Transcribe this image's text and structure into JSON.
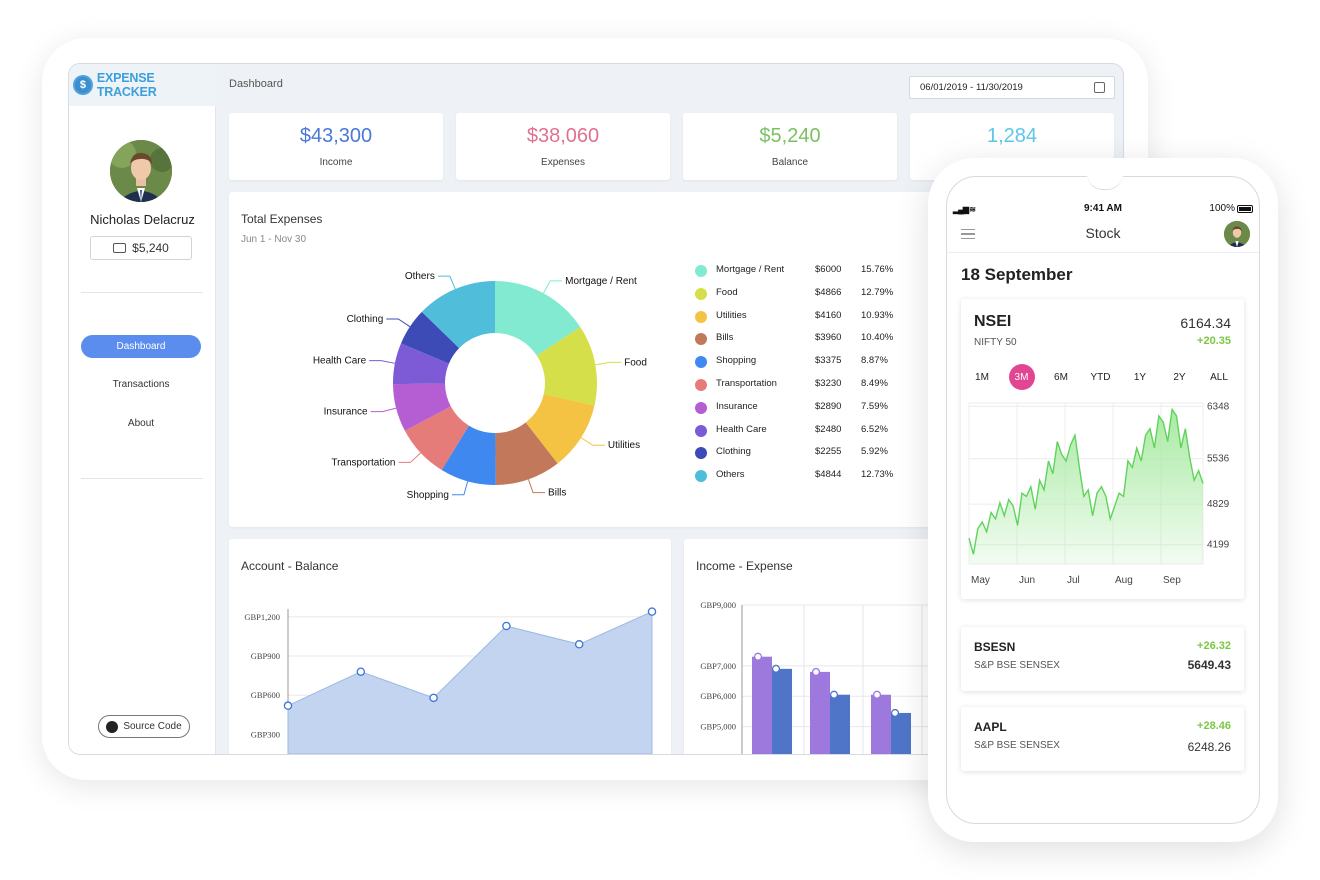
{
  "app": {
    "brand": "EXPENSE TRACKER",
    "brand_logo_glyph": "$"
  },
  "sidebar": {
    "user_name": "Nicholas Delacruz",
    "wallet_balance": "$5,240",
    "nav": [
      {
        "label": "Dashboard",
        "active": true
      },
      {
        "label": "Transactions",
        "active": false
      },
      {
        "label": "About",
        "active": false
      }
    ],
    "source_code_label": "Source Code"
  },
  "header": {
    "breadcrumb": "Dashboard",
    "date_range": "06/01/2019 - 11/30/2019"
  },
  "stats": [
    {
      "value": "$43,300",
      "label": "Income",
      "color": "#4a78d6"
    },
    {
      "value": "$38,060",
      "label": "Expenses",
      "color": "#e0718f"
    },
    {
      "value": "$5,240",
      "label": "Balance",
      "color": "#7dc063"
    },
    {
      "value": "1,284",
      "label": "",
      "color": "#5cc7e8"
    }
  ],
  "total_expenses": {
    "title": "Total Expenses",
    "subtitle": "Jun 1 - Nov 30",
    "chart_data": {
      "type": "pie",
      "categories": [
        "Mortgage / Rent",
        "Food",
        "Utilities",
        "Bills",
        "Shopping",
        "Transportation",
        "Insurance",
        "Health Care",
        "Clothing",
        "Others"
      ],
      "amounts": [
        "$6000",
        "$4866",
        "$4160",
        "$3960",
        "$3375",
        "$3230",
        "$2890",
        "$2480",
        "$2255",
        "$4844"
      ],
      "percents": [
        "15.76%",
        "12.79%",
        "10.93%",
        "10.40%",
        "8.87%",
        "8.49%",
        "7.59%",
        "6.52%",
        "5.92%",
        "12.73%"
      ],
      "values": [
        15.76,
        12.79,
        10.93,
        10.4,
        8.87,
        8.49,
        7.59,
        6.52,
        5.92,
        12.73
      ],
      "colors": [
        "#82ead0",
        "#d4df4a",
        "#f5c343",
        "#c2785a",
        "#3f88f0",
        "#e67c7a",
        "#b55dd3",
        "#7d5bd6",
        "#3c4bb5",
        "#50bedb"
      ]
    }
  },
  "account_balance": {
    "title": "Account - Balance",
    "chart_data": {
      "type": "area",
      "y_ticks": [
        "GBP300",
        "GBP600",
        "GBP900",
        "GBP1,200"
      ],
      "y_tick_values": [
        300,
        600,
        900,
        1200
      ],
      "ylim": [
        150,
        1260
      ],
      "values": [
        520,
        780,
        580,
        1130,
        990,
        1240
      ],
      "fill": "#c2d4f0",
      "line": "#9db7e3"
    }
  },
  "income_expense": {
    "title": "Income - Expense",
    "chart_data": {
      "type": "bar",
      "y_ticks": [
        "GBP5,000",
        "GBP6,000",
        "GBP7,000",
        "GBP9,000"
      ],
      "y_tick_values": [
        5000,
        6000,
        7000,
        9000
      ],
      "ylim": [
        4100,
        9000
      ],
      "series": [
        {
          "values": [
            7300,
            6800,
            6050
          ],
          "color": "#9d79de"
        },
        {
          "values": [
            6900,
            6050,
            5450
          ],
          "color": "#4f75c8"
        }
      ]
    }
  },
  "phone": {
    "status": {
      "time": "9:41 AM",
      "battery": "100%"
    },
    "title": "Stock",
    "date": "18 September",
    "main_stock": {
      "name": "NSEI",
      "sub": "NIFTY 50",
      "value": "6164.34",
      "change": "+20.35",
      "ranges": [
        {
          "label": "1M",
          "active": false
        },
        {
          "label": "3M",
          "active": true
        },
        {
          "label": "6M",
          "active": false
        },
        {
          "label": "YTD",
          "active": false
        },
        {
          "label": "1Y",
          "active": false
        },
        {
          "label": "2Y",
          "active": false
        },
        {
          "label": "ALL",
          "active": false
        }
      ],
      "chart_data": {
        "type": "area",
        "y_ticks": [
          "6348",
          "5536",
          "4829",
          "4199"
        ],
        "y_tick_values": [
          6348,
          5536,
          4829,
          4199
        ],
        "x_ticks": [
          "May",
          "Jun",
          "Jul",
          "Aug",
          "Sep"
        ],
        "ylim": [
          3900,
          6400
        ],
        "values": [
          4300,
          4050,
          4450,
          4550,
          4400,
          4700,
          4600,
          4850,
          4650,
          4900,
          4800,
          4500,
          5000,
          4950,
          5100,
          4750,
          5200,
          5050,
          5500,
          5300,
          5800,
          5600,
          5500,
          5750,
          5900,
          5400,
          4950,
          5050,
          4650,
          5000,
          5100,
          4950,
          4600,
          4800,
          5000,
          4950,
          5500,
          5400,
          5700,
          5500,
          5900,
          6000,
          5700,
          6200,
          6100,
          5800,
          6300,
          6200,
          5700,
          6000,
          5550,
          5200,
          5350,
          5150
        ],
        "line": "#5fd35c",
        "fill": "#a9eaa3"
      }
    },
    "other_stocks": [
      {
        "name": "BSESN",
        "sub": "S&P BSE SENSEX",
        "value": "5649.43",
        "change": "+26.32"
      },
      {
        "name": "AAPL",
        "sub": "S&P BSE SENSEX",
        "value": "6248.26",
        "change": "+28.46"
      }
    ]
  }
}
